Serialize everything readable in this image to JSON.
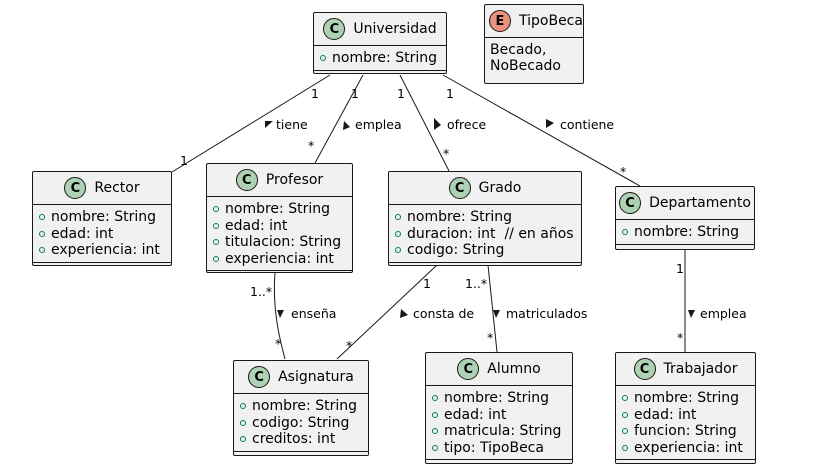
{
  "classes": {
    "universidad": {
      "name": "Universidad",
      "stereotype": "C",
      "attributes": [
        "nombre: String"
      ]
    },
    "rector": {
      "name": "Rector",
      "stereotype": "C",
      "attributes": [
        "nombre: String",
        "edad: int",
        "experiencia: int"
      ]
    },
    "profesor": {
      "name": "Profesor",
      "stereotype": "C",
      "attributes": [
        "nombre: String",
        "edad: int",
        "titulacion: String",
        "experiencia: int"
      ]
    },
    "grado": {
      "name": "Grado",
      "stereotype": "C",
      "attributes": [
        "nombre: String",
        "duracion: int  // en años",
        "codigo: String"
      ]
    },
    "departamento": {
      "name": "Departamento",
      "stereotype": "C",
      "attributes": [
        "nombre: String"
      ]
    },
    "asignatura": {
      "name": "Asignatura",
      "stereotype": "C",
      "attributes": [
        "nombre: String",
        "codigo: String",
        "creditos: int"
      ]
    },
    "alumno": {
      "name": "Alumno",
      "stereotype": "C",
      "attributes": [
        "nombre: String",
        "edad: int",
        "matricula: String",
        "tipo: TipoBeca"
      ]
    },
    "trabajador": {
      "name": "Trabajador",
      "stereotype": "C",
      "attributes": [
        "nombre: String",
        "edad: int",
        "funcion: String",
        "experiencia: int"
      ]
    }
  },
  "enum_tipobeca": {
    "name": "TipoBeca",
    "stereotype": "E",
    "values_line1": "Becado,",
    "values_line2": "NoBecado"
  },
  "relations": [
    {
      "from": "Universidad",
      "to": "Rector",
      "label": "tiene",
      "from_mult": "1",
      "to_mult": "1"
    },
    {
      "from": "Universidad",
      "to": "Profesor",
      "label": "emplea",
      "from_mult": "1",
      "to_mult": "*"
    },
    {
      "from": "Universidad",
      "to": "Grado",
      "label": "ofrece",
      "from_mult": "1",
      "to_mult": "*"
    },
    {
      "from": "Universidad",
      "to": "Departamento",
      "label": "contiene",
      "from_mult": "1",
      "to_mult": "*"
    },
    {
      "from": "Profesor",
      "to": "Asignatura",
      "label": "enseña",
      "from_mult": "1..*",
      "to_mult": "*"
    },
    {
      "from": "Grado",
      "to": "Asignatura",
      "label": "consta de",
      "from_mult": "1",
      "to_mult": "*"
    },
    {
      "from": "Grado",
      "to": "Alumno",
      "label": "matriculados",
      "from_mult": "1..*",
      "to_mult": "*"
    },
    {
      "from": "Departamento",
      "to": "Trabajador",
      "label": "emplea",
      "from_mult": "1",
      "to_mult": "*"
    }
  ],
  "colors": {
    "class_fill": "#f1f1f1",
    "border": "#181818",
    "class_badge": "#add1b2",
    "enum_badge": "#eb937f",
    "visibility": "#038048"
  }
}
